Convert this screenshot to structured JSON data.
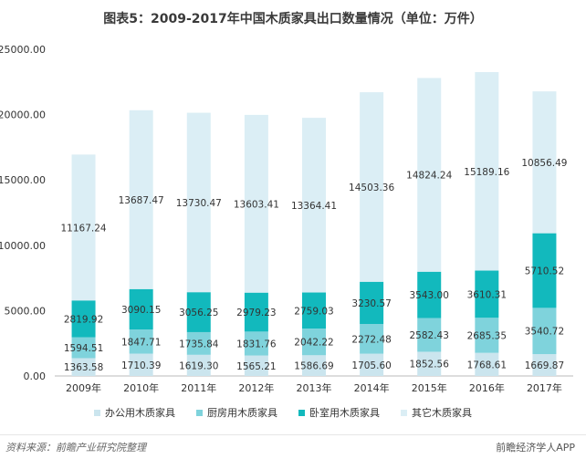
{
  "title": "图表5：2009-2017年中国木质家具出口数量情况（单位：万件）",
  "source_label": "资料来源：前瞻产业研究院整理",
  "brand_label": "前瞻经济学人APP",
  "chart_data": {
    "type": "bar",
    "stacked": true,
    "categories": [
      "2009年",
      "2010年",
      "2011年",
      "2012年",
      "2013年",
      "2014年",
      "2015年",
      "2016年",
      "2017年"
    ],
    "series": [
      {
        "name": "办公用木质家具",
        "color": "#cbe5ee",
        "values": [
          1363.58,
          1710.39,
          1619.3,
          1565.21,
          1586.69,
          1705.6,
          1852.56,
          1768.61,
          1669.87
        ],
        "labels": [
          "1363.58",
          "1710.39",
          "1619.30",
          "1565.21",
          "1586.69",
          "1705.60",
          "1852.56",
          "1768.61",
          "1669.87"
        ]
      },
      {
        "name": "厨房用木质家具",
        "color": "#7fd3dc",
        "values": [
          1594.51,
          1847.71,
          1735.84,
          1831.76,
          2042.22,
          2272.48,
          2582.43,
          2685.35,
          3540.72
        ],
        "labels": [
          "1594.51",
          "1847.71",
          "1735.84",
          "1831.76",
          "2042.22",
          "2272.48",
          "2582.43",
          "2685.35",
          "3540.72"
        ]
      },
      {
        "name": "卧室用木质家具",
        "color": "#12b9bd",
        "values": [
          2819.92,
          3090.15,
          3056.25,
          2979.23,
          2759.03,
          3230.57,
          3543.0,
          3610.31,
          5710.52
        ],
        "labels": [
          "2819.92",
          "3090.15",
          "3056.25",
          "2979.23",
          "2759.03",
          "3230.57",
          "3543.00",
          "3610.31",
          "5710.52"
        ]
      },
      {
        "name": "其它木质家具",
        "color": "#dbeef5",
        "values": [
          11167.24,
          13687.47,
          13730.47,
          13603.41,
          13364.41,
          14503.36,
          14824.24,
          15189.16,
          10856.49
        ],
        "labels": [
          "11167.24",
          "13687.47",
          "13730.47",
          "13603.41",
          "13364.41",
          "14503.36",
          "14824.24",
          "15189.16",
          "10856.49"
        ]
      }
    ],
    "yticks": [
      "0.00",
      "5000.00",
      "10000.00",
      "15000.00",
      "20000.00",
      "25000.00"
    ],
    "ylim": [
      0,
      25000
    ],
    "grid": false,
    "legend": "bottom"
  }
}
